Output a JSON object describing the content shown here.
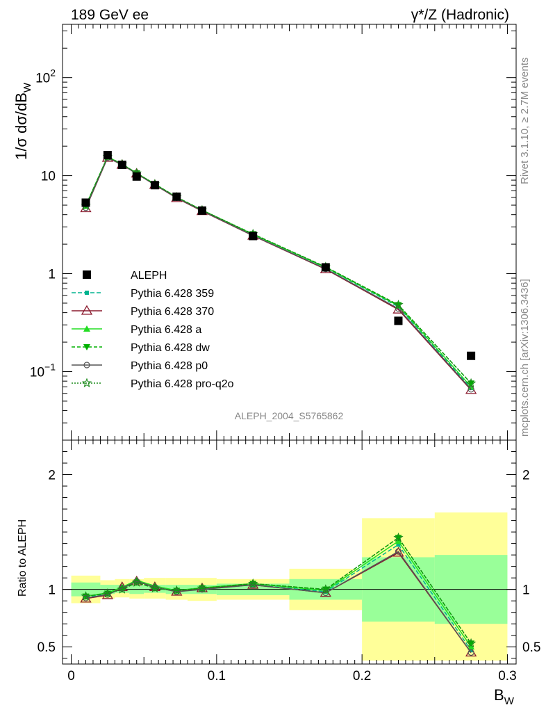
{
  "header": {
    "left": "189 GeV ee",
    "right": "γ*/Z (Hadronic)"
  },
  "side": {
    "rivet": "Rivet 3.1.10, ≥ 2.7M events",
    "source": "mcplots.cern.ch [arXiv:1306.3436]"
  },
  "analysis_label": "ALEPH_2004_S5765862",
  "main_ylabel": "1/σ  dσ/dB_W",
  "ratio_ylabel": "Ratio to ALEPH",
  "xlabel": "B_W",
  "tick_labels": {
    "main_y": [
      "10^-1",
      "1",
      "10",
      "10^2"
    ],
    "ratio_y": [
      "0.5",
      "1",
      "2"
    ],
    "x": [
      "0",
      "0.1",
      "0.2",
      "0.3"
    ]
  },
  "legend": [
    {
      "label": "ALEPH"
    },
    {
      "label": "Pythia 6.428 359"
    },
    {
      "label": "Pythia 6.428 370"
    },
    {
      "label": "Pythia 6.428 a"
    },
    {
      "label": "Pythia 6.428 dw"
    },
    {
      "label": "Pythia 6.428 p0"
    },
    {
      "label": "Pythia 6.428 pro-q2o"
    }
  ],
  "chart_data": [
    {
      "type": "line",
      "xlabel": "B_W",
      "ylabel": "1/σ dσ/dB_W",
      "yscale": "log",
      "xlim": [
        -0.006,
        0.306
      ],
      "ylim": [
        0.02,
        350
      ],
      "x": [
        0.01,
        0.025,
        0.035,
        0.045,
        0.0575,
        0.0725,
        0.09,
        0.125,
        0.175,
        0.225,
        0.275
      ],
      "bin_edges": [
        0,
        0.02,
        0.03,
        0.04,
        0.05,
        0.065,
        0.08,
        0.1,
        0.15,
        0.2,
        0.25,
        0.3
      ],
      "series": [
        {
          "name": "ALEPH",
          "style": "data",
          "color": "#000000",
          "values": [
            5.3,
            16.2,
            12.9,
            9.8,
            8.0,
            6.1,
            4.4,
            2.42,
            1.16,
            0.33,
            0.145
          ]
        },
        {
          "name": "Pythia 6.428 359",
          "color": "#00b38f",
          "dash": "6,3",
          "marker": "square",
          "values": [
            4.9,
            15.5,
            13.0,
            10.5,
            8.1,
            6.0,
            4.4,
            2.5,
            1.15,
            0.46,
            0.068
          ]
        },
        {
          "name": "Pythia 6.428 370",
          "color": "#8b1a2e",
          "dash": "",
          "marker": "triangle-open",
          "values": [
            4.65,
            15.2,
            12.9,
            10.5,
            8.05,
            5.9,
            4.35,
            2.44,
            1.11,
            0.43,
            0.065
          ]
        },
        {
          "name": "Pythia 6.428 a",
          "color": "#22dd22",
          "dash": "",
          "marker": "triangle",
          "values": [
            4.9,
            15.6,
            13.1,
            10.6,
            8.2,
            6.0,
            4.45,
            2.52,
            1.16,
            0.47,
            0.07
          ]
        },
        {
          "name": "Pythia 6.428 dw",
          "color": "#00b000",
          "dash": "5,3",
          "marker": "triangle-down",
          "values": [
            4.95,
            15.6,
            13.1,
            10.6,
            8.2,
            6.05,
            4.45,
            2.54,
            1.17,
            0.48,
            0.076
          ]
        },
        {
          "name": "Pythia 6.428 p0",
          "color": "#555555",
          "dash": "",
          "marker": "circle-open",
          "values": [
            4.7,
            15.3,
            12.9,
            10.5,
            8.05,
            5.95,
            4.38,
            2.45,
            1.12,
            0.44,
            0.066
          ]
        },
        {
          "name": "Pythia 6.428 pro-q2o",
          "color": "#1a8a1a",
          "dash": "2,2",
          "marker": "star",
          "values": [
            4.95,
            15.6,
            13.1,
            10.6,
            8.2,
            6.05,
            4.45,
            2.54,
            1.17,
            0.48,
            0.076
          ]
        }
      ]
    },
    {
      "type": "line",
      "ylabel": "Ratio to ALEPH",
      "xlabel": "B_W",
      "ylim": [
        0.35,
        2.3
      ],
      "reference_line": 1,
      "bands": {
        "stat": {
          "color": "#99ff99",
          "lo": [
            0.94,
            0.96,
            0.97,
            0.96,
            0.97,
            0.96,
            0.96,
            0.95,
            0.91,
            0.72,
            0.7
          ],
          "hi": [
            1.06,
            1.04,
            1.04,
            1.04,
            1.04,
            1.04,
            1.04,
            1.05,
            1.09,
            1.28,
            1.3
          ]
        },
        "total": {
          "color": "#ffff99",
          "lo": [
            0.88,
            0.92,
            0.93,
            0.92,
            0.92,
            0.91,
            0.9,
            0.91,
            0.82,
            0.38,
            0.38
          ],
          "hi": [
            1.12,
            1.08,
            1.09,
            1.09,
            1.1,
            1.1,
            1.1,
            1.09,
            1.18,
            1.62,
            1.67
          ]
        }
      },
      "series": [
        {
          "name": "Pythia 6.428 359",
          "values": [
            0.93,
            0.96,
            1.01,
            1.07,
            1.02,
            0.985,
            1.0,
            1.04,
            0.98,
            1.39,
            0.47
          ]
        },
        {
          "name": "Pythia 6.428 370",
          "values": [
            0.92,
            0.95,
            1.02,
            1.07,
            1.02,
            0.98,
            1.01,
            1.04,
            0.97,
            1.32,
            0.45
          ]
        },
        {
          "name": "Pythia 6.428 a",
          "values": [
            0.94,
            0.97,
            1.02,
            1.08,
            1.03,
            0.99,
            1.015,
            1.05,
            0.99,
            1.42,
            0.5
          ]
        },
        {
          "name": "Pythia 6.428 dw",
          "values": [
            0.94,
            0.965,
            1.0,
            1.06,
            1.01,
            0.99,
            1.01,
            1.05,
            1.0,
            1.45,
            0.53
          ]
        },
        {
          "name": "Pythia 6.428 p0",
          "values": [
            0.925,
            0.955,
            1.01,
            1.07,
            1.02,
            0.98,
            1.0,
            1.04,
            0.97,
            1.33,
            0.45
          ]
        },
        {
          "name": "Pythia 6.428 pro-q2o",
          "values": [
            0.94,
            0.965,
            1.0,
            1.06,
            1.01,
            0.99,
            1.01,
            1.05,
            1.0,
            1.45,
            0.53
          ]
        }
      ]
    }
  ]
}
